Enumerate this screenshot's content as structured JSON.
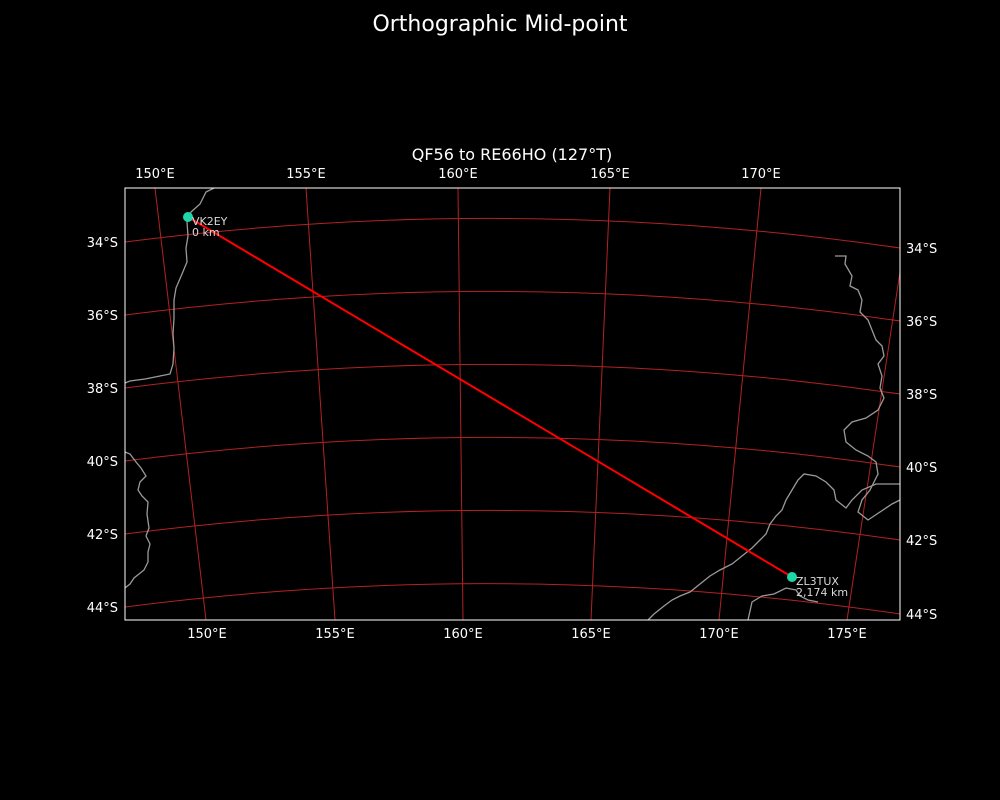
{
  "figure": {
    "title": "Orthographic Mid-point",
    "subtitle": "QF56 to RE66HO (127°T)"
  },
  "colors": {
    "background": "#000000",
    "graticule": "#b22222",
    "coastline": "#9a9a9a",
    "path": "#ff0000",
    "station": "#1fd6a8",
    "frame": "#ffffff"
  },
  "map": {
    "projection": "orthographic",
    "top_lon_ticks": [
      "150°E",
      "155°E",
      "160°E",
      "165°E",
      "170°E"
    ],
    "bottom_lon_ticks": [
      "150°E",
      "155°E",
      "160°E",
      "165°E",
      "170°E",
      "175°E"
    ],
    "left_lat_ticks": [
      "34°S",
      "36°S",
      "38°S",
      "40°S",
      "42°S",
      "44°S"
    ],
    "right_lat_ticks": [
      "34°S",
      "36°S",
      "38°S",
      "40°S",
      "42°S",
      "44°S"
    ]
  },
  "stations": [
    {
      "call": "VK2EY",
      "distance": "0 km",
      "lon": 151.0,
      "lat": -33.5
    },
    {
      "call": "ZL3TUX",
      "distance": "2,174 km",
      "lon": 172.5,
      "lat": -43.5
    }
  ]
}
